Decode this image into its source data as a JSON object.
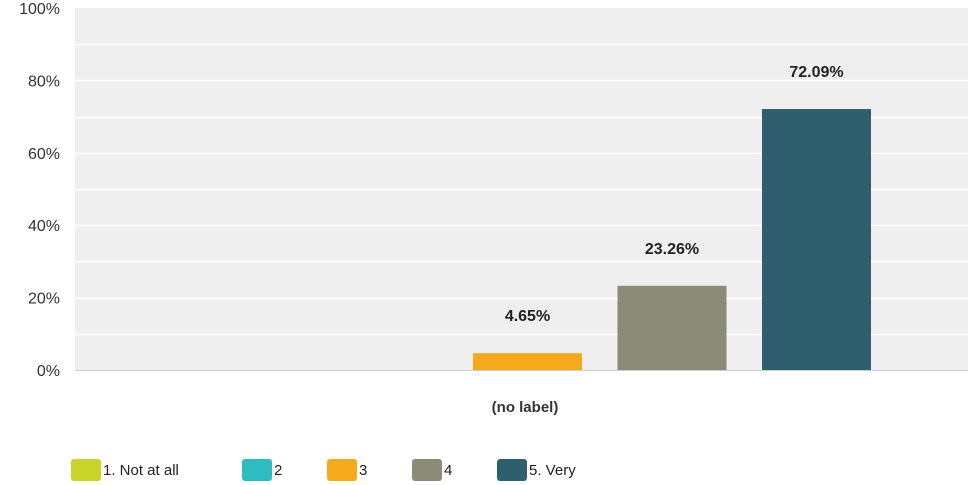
{
  "chart_data": {
    "type": "bar",
    "categories": [
      "(no label)"
    ],
    "xlabel": "",
    "ylabel": "",
    "ylim": [
      0,
      100
    ],
    "yticks": [
      "0%",
      "20%",
      "40%",
      "60%",
      "80%",
      "100%"
    ],
    "grid": true,
    "legend_position": "bottom-left",
    "series": [
      {
        "name": "1. Not at all",
        "values": [
          0
        ],
        "value_label": "",
        "color": "#c9d42b"
      },
      {
        "name": "2",
        "values": [
          0
        ],
        "value_label": "",
        "color": "#2fbcc0"
      },
      {
        "name": "3",
        "values": [
          4.65
        ],
        "value_label": "4.65%",
        "color": "#f5a91d"
      },
      {
        "name": "4",
        "values": [
          23.26
        ],
        "value_label": "23.26%",
        "color": "#8a8b78"
      },
      {
        "name": "5. Very",
        "values": [
          72.09
        ],
        "value_label": "72.09%",
        "color": "#2f5f6e"
      }
    ]
  }
}
